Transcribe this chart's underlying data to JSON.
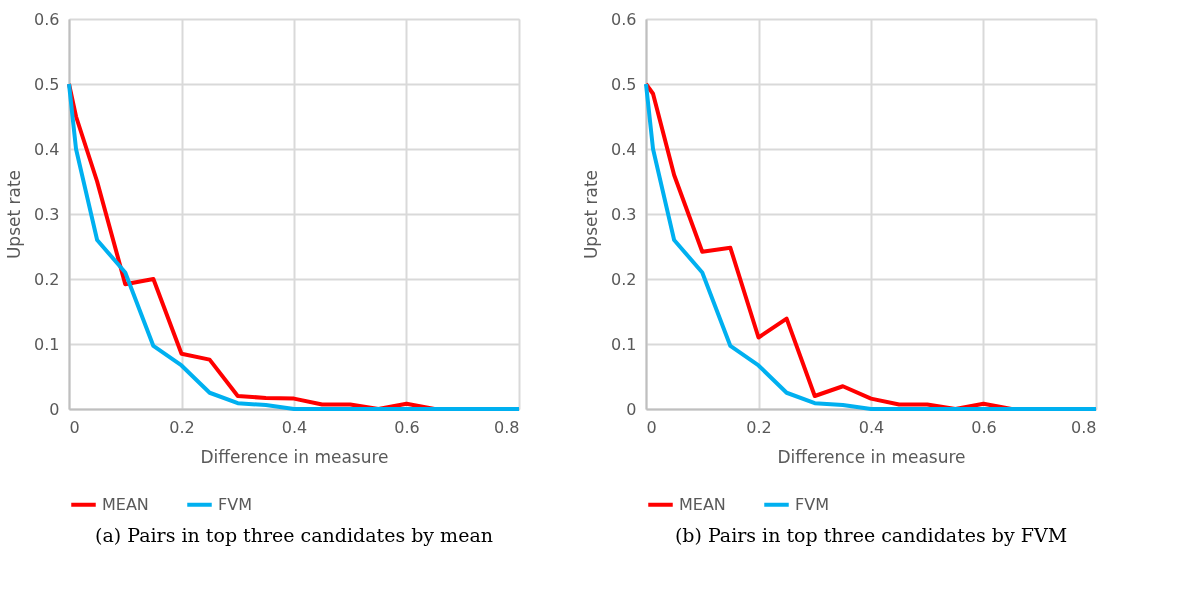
{
  "chart_data": [
    {
      "type": "line",
      "title": "(a) Pairs in top three candidates by mean",
      "xlabel": "Difference in measure",
      "ylabel": "Upset rate",
      "xlim": [
        0,
        0.8
      ],
      "xticks": [
        0,
        0.2,
        0.4,
        0.6,
        0.8
      ],
      "ylim": [
        0,
        0.6
      ],
      "yticks": [
        0,
        0.1,
        0.2,
        0.3,
        0.4,
        0.5,
        0.6
      ],
      "grid": true,
      "legend": "bottom",
      "marker": "none",
      "line_style": "solid",
      "series": [
        {
          "name": "MEAN",
          "color": "#ff0000",
          "x": [
            0,
            0.0125,
            0.05,
            0.1,
            0.15,
            0.2,
            0.25,
            0.3,
            0.35,
            0.4,
            0.45,
            0.5,
            0.55,
            0.6,
            0.65,
            0.7
          ],
          "values": [
            0.5,
            0.45,
            0.35,
            0.192,
            0.2,
            0.085,
            0.076,
            0.02,
            0.017,
            0.016,
            0.007,
            0.007,
            0,
            0.008,
            0,
            0
          ]
        },
        {
          "name": "FVM",
          "color": "#00b0f0",
          "x": [
            0,
            0.0125,
            0.05,
            0.1,
            0.15,
            0.2,
            0.25,
            0.3,
            0.35,
            0.4,
            0.45,
            0.5,
            0.55,
            0.6,
            0.65,
            0.7,
            0.75,
            0.8
          ],
          "values": [
            0.5,
            0.4,
            0.26,
            0.21,
            0.097,
            0.067,
            0.025,
            0.009,
            0.006,
            0,
            0,
            0,
            0,
            0,
            0,
            0,
            0,
            0
          ]
        }
      ]
    },
    {
      "type": "line",
      "title": "(b) Pairs in top three candidates by FVM",
      "xlabel": "Difference in measure",
      "ylabel": "Upset rate",
      "xlim": [
        0,
        0.8
      ],
      "xticks": [
        0,
        0.2,
        0.4,
        0.6,
        0.8
      ],
      "ylim": [
        0,
        0.6
      ],
      "yticks": [
        0,
        0.1,
        0.2,
        0.3,
        0.4,
        0.5,
        0.6
      ],
      "grid": true,
      "legend": "bottom",
      "marker": "none",
      "line_style": "solid",
      "series": [
        {
          "name": "MEAN",
          "color": "#ff0000",
          "x": [
            0,
            0.0125,
            0.05,
            0.1,
            0.15,
            0.2,
            0.25,
            0.3,
            0.35,
            0.4,
            0.45,
            0.5,
            0.55,
            0.6,
            0.65,
            0.7
          ],
          "values": [
            0.5,
            0.485,
            0.36,
            0.242,
            0.248,
            0.11,
            0.139,
            0.02,
            0.035,
            0.016,
            0.007,
            0.007,
            0,
            0.008,
            0,
            0
          ]
        },
        {
          "name": "FVM",
          "color": "#00b0f0",
          "x": [
            0,
            0.0125,
            0.05,
            0.1,
            0.15,
            0.2,
            0.25,
            0.3,
            0.35,
            0.4,
            0.45,
            0.5,
            0.55,
            0.6,
            0.65,
            0.7,
            0.75,
            0.8
          ],
          "values": [
            0.5,
            0.4,
            0.26,
            0.21,
            0.097,
            0.067,
            0.025,
            0.009,
            0.006,
            0,
            0,
            0,
            0,
            0,
            0,
            0,
            0,
            0
          ]
        }
      ]
    }
  ]
}
